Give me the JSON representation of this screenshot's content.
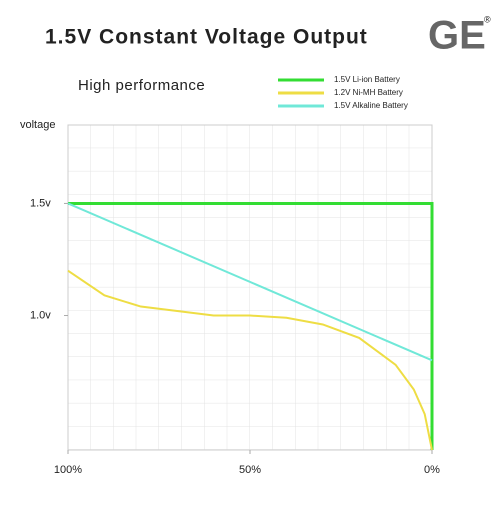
{
  "chart_data": {
    "type": "line",
    "title": "1.5V Constant Voltage Output",
    "subtitle": "High performance",
    "brand": "GE",
    "brand_mark": "®",
    "y_label": "voltage",
    "xlim": [
      100,
      0
    ],
    "xticks": [
      {
        "value": 100,
        "label": "100%"
      },
      {
        "value": 50,
        "label": "50%"
      },
      {
        "value": 0,
        "label": "0%"
      }
    ],
    "ylim": [
      0.4,
      1.85
    ],
    "yticks": [
      {
        "value": 1.5,
        "label": "1.5v"
      },
      {
        "value": 1.0,
        "label": "1.0v"
      }
    ],
    "legend": "top-right",
    "series": [
      {
        "name": "1.5V Li-ion Battery",
        "color": "#33dd33",
        "x": [
          100,
          0,
          0
        ],
        "values": [
          1.5,
          1.5,
          0.4
        ]
      },
      {
        "name": "1.2V Ni-MH Battery",
        "color": "#eedd44",
        "x": [
          100,
          90,
          80,
          70,
          60,
          50,
          40,
          30,
          20,
          10,
          5,
          2,
          0
        ],
        "values": [
          1.2,
          1.09,
          1.04,
          1.02,
          1.0,
          1.0,
          0.99,
          0.96,
          0.9,
          0.78,
          0.67,
          0.56,
          0.4
        ]
      },
      {
        "name": "1.5V Alkaline Battery",
        "color": "#70e8d8",
        "x": [
          100,
          0
        ],
        "values": [
          1.5,
          0.8
        ]
      }
    ]
  }
}
